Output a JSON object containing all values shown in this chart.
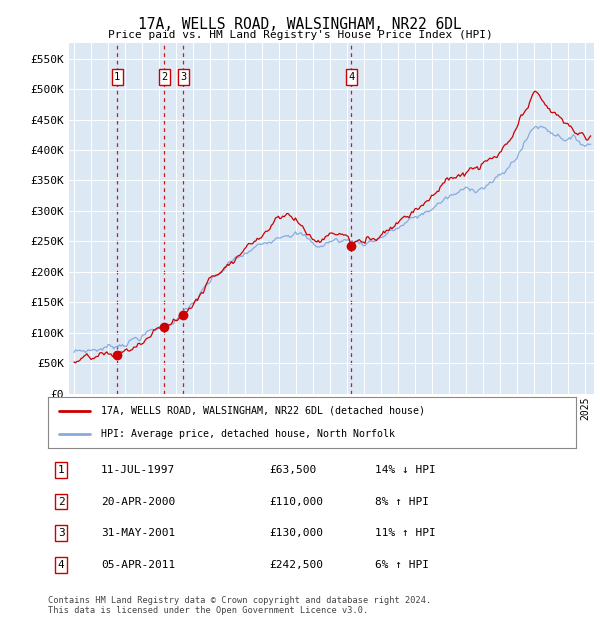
{
  "title": "17A, WELLS ROAD, WALSINGHAM, NR22 6DL",
  "subtitle": "Price paid vs. HM Land Registry's House Price Index (HPI)",
  "hpi_label": "HPI: Average price, detached house, North Norfolk",
  "price_label": "17A, WELLS ROAD, WALSINGHAM, NR22 6DL (detached house)",
  "background_color": "#dce9f5",
  "plot_bg_color": "#dce9f5",
  "sale_dates": [
    1997.53,
    2000.3,
    2001.41,
    2011.26
  ],
  "sale_prices": [
    63500,
    110000,
    130000,
    242500
  ],
  "sale_labels": [
    "1",
    "2",
    "3",
    "4"
  ],
  "sale_info": [
    {
      "num": "1",
      "date": "11-JUL-1997",
      "price": "£63,500",
      "pct": "14%",
      "dir": "↓"
    },
    {
      "num": "2",
      "date": "20-APR-2000",
      "price": "£110,000",
      "pct": "8%",
      "dir": "↑"
    },
    {
      "num": "3",
      "date": "31-MAY-2001",
      "price": "£130,000",
      "pct": "11%",
      "dir": "↑"
    },
    {
      "num": "4",
      "date": "05-APR-2011",
      "price": "£242,500",
      "pct": "6%",
      "dir": "↑"
    }
  ],
  "footer": "Contains HM Land Registry data © Crown copyright and database right 2024.\nThis data is licensed under the Open Government Licence v3.0.",
  "ylim": [
    0,
    575000
  ],
  "yticks": [
    0,
    50000,
    100000,
    150000,
    200000,
    250000,
    300000,
    350000,
    400000,
    450000,
    500000,
    550000
  ],
  "xlim_start": 1994.7,
  "xlim_end": 2025.5,
  "price_line_color": "#cc0000",
  "hpi_line_color": "#88aadd",
  "dashed_line_color": "#cc0000",
  "marker_color": "#cc0000",
  "hpi_ctrl": {
    "years": [
      1995,
      1995.5,
      1996,
      1996.5,
      1997,
      1997.5,
      1998,
      1998.5,
      1999,
      1999.5,
      2000,
      2000.5,
      2001,
      2001.5,
      2002,
      2002.5,
      2003,
      2003.5,
      2004,
      2004.5,
      2005,
      2005.5,
      2006,
      2006.5,
      2007,
      2007.5,
      2008,
      2008.5,
      2009,
      2009.5,
      2010,
      2010.5,
      2011,
      2011.5,
      2012,
      2012.5,
      2013,
      2013.5,
      2014,
      2014.5,
      2015,
      2015.5,
      2016,
      2016.5,
      2017,
      2017.5,
      2018,
      2018.5,
      2019,
      2019.5,
      2020,
      2020.5,
      2021,
      2021.5,
      2022,
      2022.5,
      2023,
      2023.5,
      2024,
      2024.5,
      2025
    ],
    "values": [
      68000,
      70000,
      72000,
      74000,
      77000,
      80000,
      85000,
      90000,
      95000,
      102000,
      108000,
      116000,
      124000,
      135000,
      148000,
      165000,
      182000,
      195000,
      210000,
      220000,
      228000,
      236000,
      244000,
      255000,
      263000,
      268000,
      265000,
      258000,
      245000,
      242000,
      250000,
      252000,
      252000,
      250000,
      248000,
      252000,
      258000,
      265000,
      272000,
      280000,
      288000,
      295000,
      305000,
      315000,
      322000,
      328000,
      335000,
      338000,
      342000,
      348000,
      355000,
      370000,
      392000,
      415000,
      440000,
      438000,
      432000,
      425000,
      420000,
      415000,
      410000
    ]
  },
  "price_ctrl": {
    "years": [
      1995,
      1995.5,
      1996,
      1996.5,
      1997,
      1997.53,
      1998,
      1998.5,
      1999,
      1999.5,
      2000,
      2000.3,
      2001,
      2001.41,
      2002,
      2002.5,
      2003,
      2003.5,
      2004,
      2004.5,
      2005,
      2005.5,
      2006,
      2006.5,
      2007,
      2007.5,
      2008,
      2008.5,
      2009,
      2009.5,
      2010,
      2010.5,
      2011,
      2011.26,
      2011.5,
      2012,
      2012.5,
      2013,
      2013.5,
      2014,
      2014.5,
      2015,
      2015.5,
      2016,
      2016.5,
      2017,
      2017.5,
      2018,
      2018.5,
      2019,
      2019.5,
      2020,
      2020.5,
      2021,
      2021.5,
      2022,
      2022.5,
      2023,
      2023.5,
      2024,
      2024.5,
      2025
    ],
    "values": [
      52000,
      54000,
      56000,
      59000,
      62000,
      63500,
      70000,
      76000,
      82000,
      95000,
      104000,
      110000,
      120000,
      130000,
      148000,
      168000,
      188000,
      202000,
      218000,
      228000,
      238000,
      250000,
      262000,
      278000,
      295000,
      298000,
      285000,
      270000,
      255000,
      252000,
      262000,
      265000,
      260000,
      242500,
      250000,
      248000,
      255000,
      265000,
      275000,
      285000,
      295000,
      305000,
      315000,
      328000,
      340000,
      350000,
      358000,
      362000,
      368000,
      375000,
      382000,
      392000,
      408000,
      435000,
      462000,
      490000,
      480000,
      465000,
      450000,
      440000,
      430000,
      420000
    ]
  }
}
